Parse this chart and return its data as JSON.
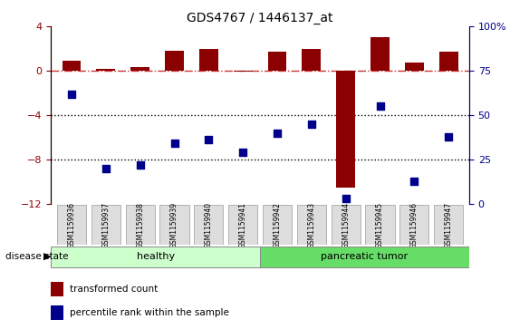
{
  "title": "GDS4767 / 1446137_at",
  "samples": [
    "GSM1159936",
    "GSM1159937",
    "GSM1159938",
    "GSM1159939",
    "GSM1159940",
    "GSM1159941",
    "GSM1159942",
    "GSM1159943",
    "GSM1159944",
    "GSM1159945",
    "GSM1159946",
    "GSM1159947"
  ],
  "transformed_count": [
    0.9,
    0.2,
    0.3,
    1.8,
    2.0,
    -0.1,
    1.7,
    2.0,
    -10.5,
    3.0,
    0.7,
    1.7
  ],
  "percentile_rank": [
    62,
    20,
    22,
    34,
    36,
    29,
    40,
    45,
    3,
    55,
    13,
    38
  ],
  "ylim_left": [
    -12,
    4
  ],
  "ylim_right": [
    0,
    100
  ],
  "yticks_left": [
    -12,
    -8,
    -4,
    0,
    4
  ],
  "yticks_right": [
    0,
    25,
    50,
    75,
    100
  ],
  "bar_color": "#8B0000",
  "dot_color": "#00008B",
  "dashed_line_color": "#CC3333",
  "dot_line_color": "black",
  "healthy_color": "#CCFFCC",
  "tumor_color": "#66DD66",
  "num_healthy": 6,
  "num_tumor": 6,
  "bg_color": "white"
}
